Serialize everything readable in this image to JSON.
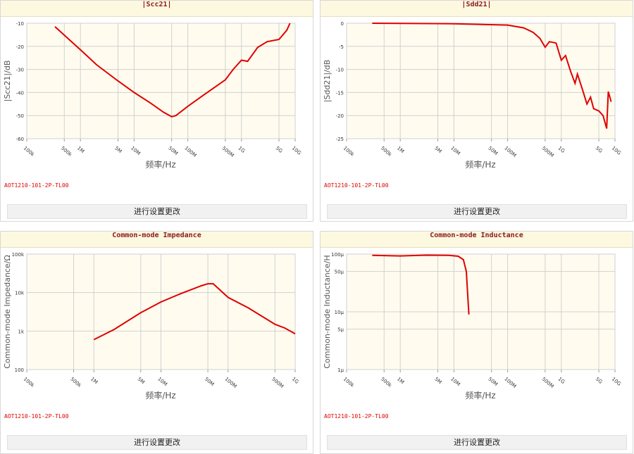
{
  "chart_data": [
    {
      "type": "line",
      "title": "|Scc21|",
      "x_label": "频率/Hz",
      "y_label": "|Scc21|/dB",
      "log_x": true,
      "log_y": false,
      "grid": true,
      "color": "#e00000",
      "x": [
        335000,
        1000000,
        2000000,
        5000000,
        10000000,
        20000000,
        35000000,
        50000000,
        60000000,
        100000000,
        200000000,
        500000000,
        700000000,
        1000000000,
        1300000000,
        2000000000,
        3000000000,
        5000000000,
        7000000000,
        8000000000
      ],
      "values": [
        -11.5,
        -21.5,
        -28,
        -35,
        -40,
        -44.5,
        -48.5,
        -50.5,
        -50,
        -46,
        -41,
        -34.5,
        -30,
        -26,
        -26.5,
        -20.5,
        -18,
        -17,
        -13,
        -10
      ],
      "xlim": [
        100000,
        10000000000
      ],
      "xticks": [
        {
          "value": 100000,
          "label": "100k"
        },
        {
          "value": 500000,
          "label": "500k"
        },
        {
          "value": 1000000,
          "label": "1M"
        },
        {
          "value": 5000000,
          "label": "5M"
        },
        {
          "value": 10000000,
          "label": "10M"
        },
        {
          "value": 50000000,
          "label": "50M"
        },
        {
          "value": 100000000,
          "label": "100M"
        },
        {
          "value": 500000000,
          "label": "500M"
        },
        {
          "value": 1000000000,
          "label": "1G"
        },
        {
          "value": 5000000000,
          "label": "5G"
        },
        {
          "value": 10000000000,
          "label": "10G"
        }
      ],
      "ylim": [
        -60,
        -10
      ],
      "yticks": [
        -10,
        -20,
        -30,
        -40,
        -50,
        -60
      ]
    },
    {
      "type": "line",
      "title": "|Sdd21|",
      "x_label": "频率/Hz",
      "y_label": "|Sdd21|/dB",
      "log_x": true,
      "log_y": false,
      "grid": true,
      "color": "#e00000",
      "x": [
        300000,
        10000000,
        100000000,
        200000000,
        300000000,
        400000000,
        500000000,
        600000000,
        800000000,
        1000000000,
        1200000000,
        1500000000,
        1800000000,
        2000000000,
        2500000000,
        3000000000,
        3500000000,
        4000000000,
        5000000000,
        6000000000,
        7000000000,
        7500000000,
        8500000000
      ],
      "values": [
        0,
        -0.1,
        -0.4,
        -1,
        -2,
        -3.3,
        -5.2,
        -4,
        -4.3,
        -8,
        -7,
        -10.5,
        -13,
        -11,
        -14.5,
        -17.5,
        -16,
        -18.5,
        -19,
        -20,
        -22.8,
        -14.8,
        -17
      ],
      "xlim": [
        100000,
        10000000000
      ],
      "xticks": [
        {
          "value": 100000,
          "label": "100k"
        },
        {
          "value": 500000,
          "label": "500k"
        },
        {
          "value": 1000000,
          "label": "1M"
        },
        {
          "value": 5000000,
          "label": "5M"
        },
        {
          "value": 10000000,
          "label": "10M"
        },
        {
          "value": 50000000,
          "label": "50M"
        },
        {
          "value": 100000000,
          "label": "100M"
        },
        {
          "value": 500000000,
          "label": "500M"
        },
        {
          "value": 1000000000,
          "label": "1G"
        },
        {
          "value": 5000000000,
          "label": "5G"
        },
        {
          "value": 10000000000,
          "label": "10G"
        }
      ],
      "ylim": [
        -25,
        0
      ],
      "yticks": [
        0,
        -5,
        -10,
        -15,
        -20,
        -25
      ]
    },
    {
      "type": "line",
      "title": "Common-mode Impedance",
      "x_label": "频率/Hz",
      "y_label": "Common-mode Impedance/Ω",
      "log_x": true,
      "log_y": true,
      "grid": true,
      "color": "#e00000",
      "x": [
        1000000,
        2000000,
        5000000,
        10000000,
        20000000,
        40000000,
        50000000,
        60000000,
        100000000,
        200000000,
        500000000,
        700000000,
        1000000000
      ],
      "values": [
        600,
        1100,
        3000,
        5700,
        9500,
        15000,
        17000,
        17000,
        7500,
        4000,
        1500,
        1200,
        850
      ],
      "xlim": [
        100000,
        1000000000
      ],
      "xticks": [
        {
          "value": 100000,
          "label": "100k"
        },
        {
          "value": 500000,
          "label": "500k"
        },
        {
          "value": 1000000,
          "label": "1M"
        },
        {
          "value": 5000000,
          "label": "5M"
        },
        {
          "value": 10000000,
          "label": "10M"
        },
        {
          "value": 50000000,
          "label": "50M"
        },
        {
          "value": 100000000,
          "label": "100M"
        },
        {
          "value": 500000000,
          "label": "500M"
        },
        {
          "value": 1000000000,
          "label": "1G"
        }
      ],
      "ylim": [
        100,
        100000
      ],
      "yticks": [
        100,
        {
          "value": 1000,
          "label": "1k"
        },
        {
          "value": 10000,
          "label": "10k"
        },
        {
          "value": 100000,
          "label": "100k"
        }
      ]
    },
    {
      "type": "line",
      "title": "Common-mode Inductance",
      "x_label": "频率/Hz",
      "y_label": "Common-mode Inductance/H",
      "log_x": true,
      "log_y": true,
      "grid": true,
      "color": "#e00000",
      "x": [
        300000,
        1000000,
        3000000,
        8000000,
        12000000,
        15000000,
        17000000,
        18000000,
        19000000
      ],
      "values": [
        9.5e-05,
        9.3e-05,
        9.6e-05,
        9.5e-05,
        9.2e-05,
        8e-05,
        5e-05,
        2e-05,
        9e-06
      ],
      "xlim": [
        100000,
        10000000000
      ],
      "xticks": [
        {
          "value": 100000,
          "label": "100k"
        },
        {
          "value": 500000,
          "label": "500k"
        },
        {
          "value": 1000000,
          "label": "1M"
        },
        {
          "value": 5000000,
          "label": "5M"
        },
        {
          "value": 10000000,
          "label": "10M"
        },
        {
          "value": 50000000,
          "label": "50M"
        },
        {
          "value": 100000000,
          "label": "100M"
        },
        {
          "value": 500000000,
          "label": "500M"
        },
        {
          "value": 1000000000,
          "label": "1G"
        },
        {
          "value": 5000000000,
          "label": "5G"
        },
        {
          "value": 10000000000,
          "label": "10G"
        }
      ],
      "ylim": [
        1e-06,
        0.0001
      ],
      "yticks": [
        {
          "value": 1e-06,
          "label": "1μ"
        },
        {
          "value": 5e-06,
          "label": "5μ"
        },
        {
          "value": 1e-05,
          "label": "10μ"
        },
        {
          "value": 5e-05,
          "label": "50μ"
        },
        {
          "value": 0.0001,
          "label": "100μ"
        }
      ]
    }
  ],
  "panels": [
    {
      "part": "AOT1210-101-2P-TL00",
      "button": "进行设置更改"
    },
    {
      "part": "AOT1210-101-2P-TL00",
      "button": "进行设置更改"
    },
    {
      "part": "AOT1210-101-2P-TL00",
      "button": "进行设置更改"
    },
    {
      "part": "AOT1210-101-2P-TL00",
      "button": "进行设置更改"
    }
  ]
}
